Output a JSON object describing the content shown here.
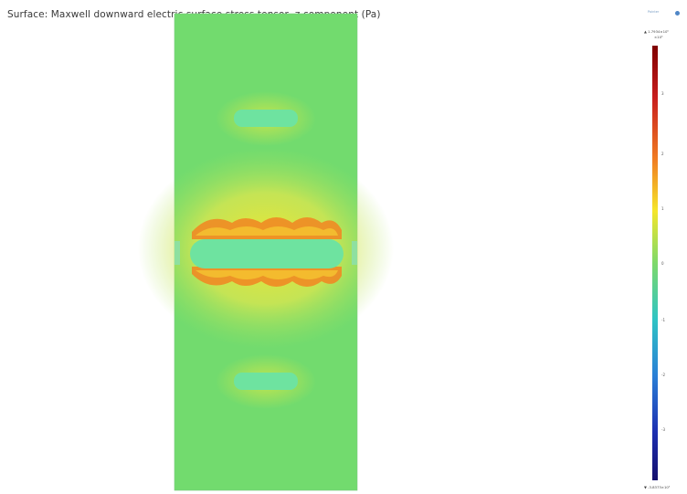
{
  "title": "Surface: Maxwell downward electric surface stress tensor, z component (Pa)",
  "toolbar": {
    "label": "Pointer",
    "icon": "info-icon"
  },
  "colorbar": {
    "max_label": "▲ 1.7934×10⁵",
    "max_sublabel": "×10⁵",
    "min_label": "▼ -3.8373×10⁵",
    "ticks": [
      "3",
      "2",
      "1",
      "0",
      "-1",
      "-2",
      "-3"
    ],
    "colormap": "rainbow",
    "colors": [
      "#7f0000",
      "#d7301f",
      "#f08a24",
      "#f5e62a",
      "#7ed96a",
      "#2fc4c4",
      "#2a7fd6",
      "#1d2fb0",
      "#15106d"
    ]
  },
  "plot": {
    "background_color": "#72db6e",
    "high_color": "#f0a030",
    "low_color": "#6ee3a0"
  }
}
